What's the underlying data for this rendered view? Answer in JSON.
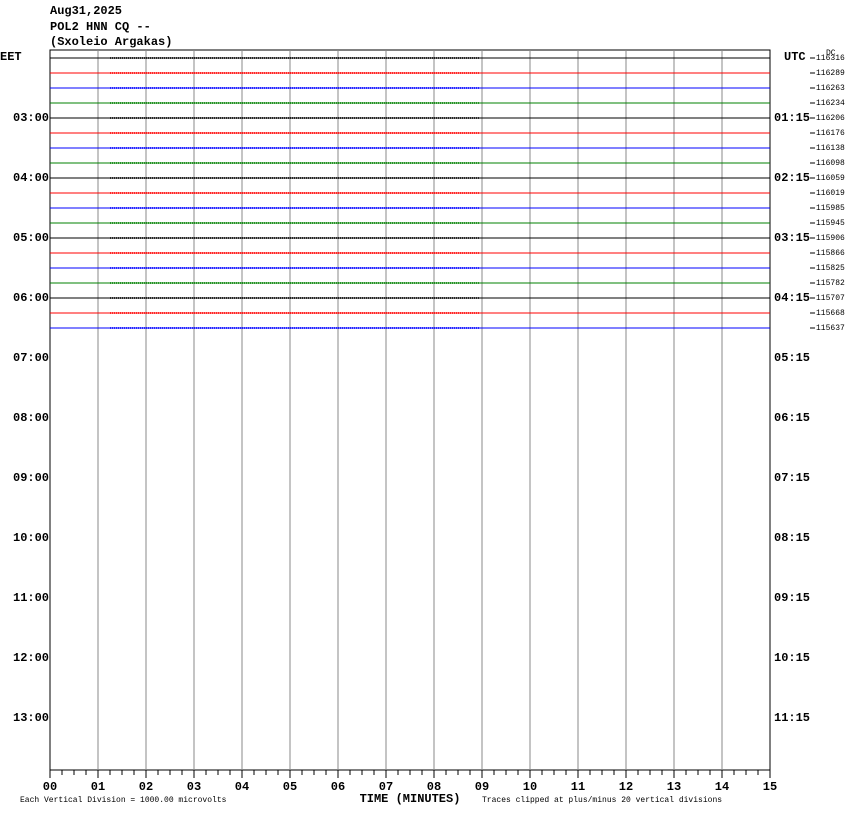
{
  "header": {
    "date": "Aug31,2025",
    "station": "POL2 HNN CQ --",
    "site": "(Sxoleio Argakas)"
  },
  "left_axis": {
    "label": "EET",
    "hours": [
      "03:00",
      "04:00",
      "05:00",
      "06:00",
      "07:00",
      "08:00",
      "09:00",
      "10:00",
      "11:00",
      "12:00",
      "13:00"
    ]
  },
  "right_axis": {
    "label": "UTC",
    "dc_label": "DC",
    "hours": [
      "01:15",
      "02:15",
      "03:15",
      "04:15",
      "05:15",
      "06:15",
      "07:15",
      "08:15",
      "09:15",
      "10:15",
      "11:15"
    ],
    "trace_offsets": [
      "116316",
      "116289",
      "116263",
      "116234",
      "116206",
      "116176",
      "116138",
      "116098",
      "116059",
      "116019",
      "115985",
      "115945",
      "115906",
      "115866",
      "115825",
      "115782",
      "115707",
      "115668",
      "115637"
    ]
  },
  "trace_colors": [
    "#000000",
    "#ff0000",
    "#0000ff",
    "#008000"
  ],
  "x_axis": {
    "label": "TIME (MINUTES)",
    "ticks": [
      "00",
      "01",
      "02",
      "03",
      "04",
      "05",
      "06",
      "07",
      "08",
      "09",
      "10",
      "11",
      "12",
      "13",
      "14",
      "15"
    ]
  },
  "footer": {
    "scale_note": "Each Vertical Division = 1000.00 microvolts",
    "clip_note": "Traces clipped at plus/minus 20 vertical divisions"
  }
}
